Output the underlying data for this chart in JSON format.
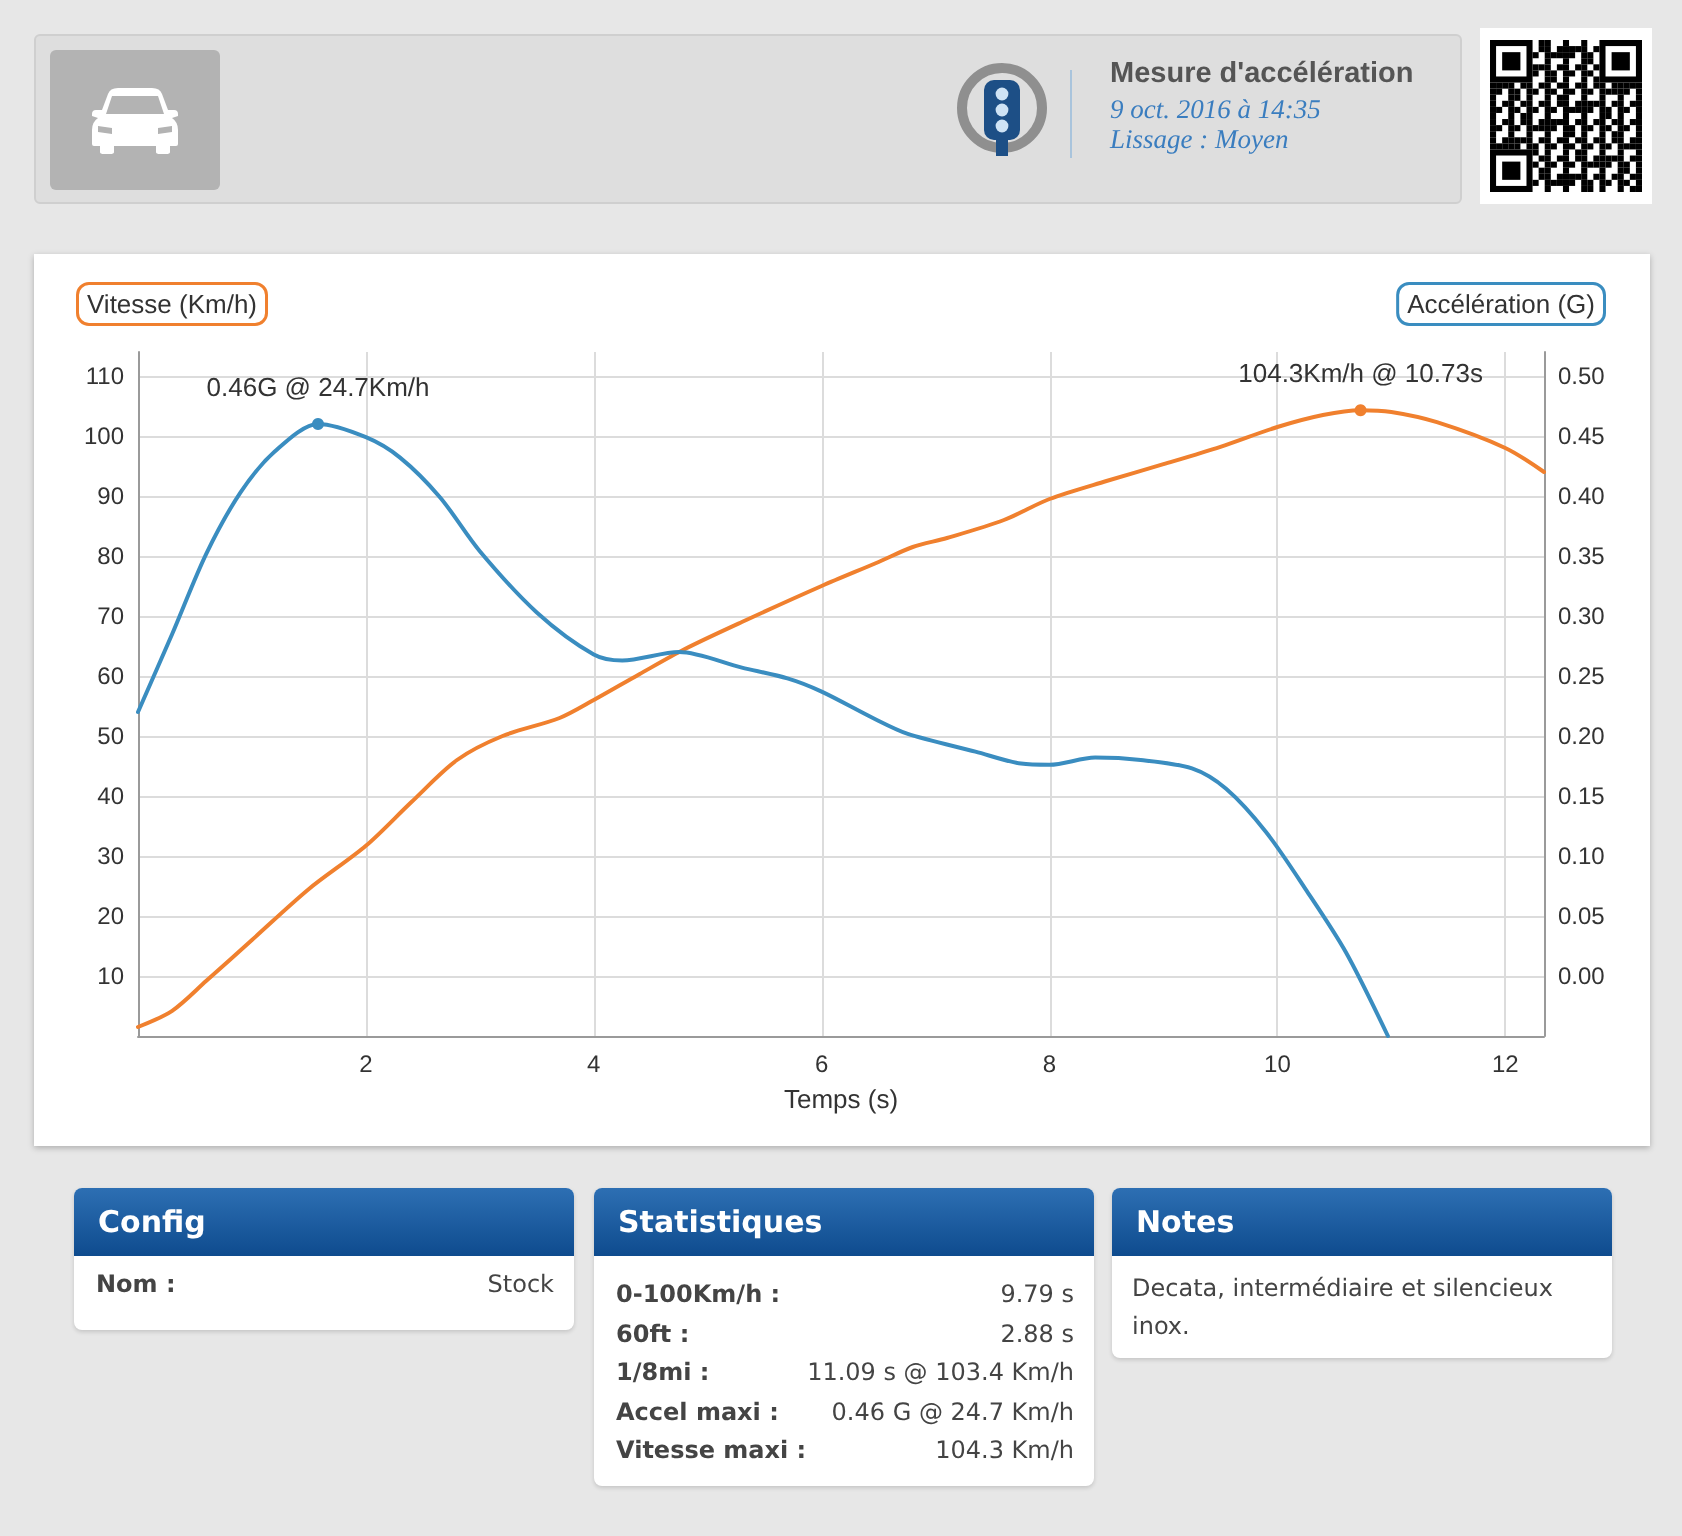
{
  "chart_data": {
    "type": "line",
    "title": "Mesure d'accélération",
    "subtitle": "9 oct. 2016 à 14:35",
    "xlabel": "Temps (s)",
    "ylabel": "Vitesse (Km/h)",
    "y2label": "Accélération (G)",
    "series": [
      {
        "color": "#f0802e",
        "x": [
          0,
          0.3,
          0.6,
          1.0,
          1.5,
          2.0,
          2.4,
          2.8,
          3.2,
          3.7,
          4.0,
          4.4,
          4.8,
          5.3,
          6.0,
          6.5,
          6.8,
          7.1,
          7.6,
          8.0,
          8.5,
          9.0,
          9.5,
          10.0,
          10.4,
          10.73,
          11.0,
          11.4,
          12.0,
          12.34
        ],
        "values": [
          1.5,
          4.2,
          9.2,
          16,
          24.5,
          31.7,
          39,
          46,
          50,
          53,
          56,
          60.3,
          64.5,
          69,
          75,
          79,
          81.5,
          83,
          86,
          89.5,
          92.5,
          95.3,
          98.2,
          101.5,
          103.5,
          104.3,
          104,
          102.3,
          98,
          94
        ],
        "value_labels": [
          null,
          null,
          null,
          null,
          null,
          null,
          null,
          null,
          null,
          null,
          null,
          null,
          null,
          null,
          null,
          null,
          null,
          null,
          null,
          null,
          null,
          null,
          null,
          null,
          null,
          "104.3Km/h @ 10.73s",
          null,
          null,
          null,
          null
        ]
      },
      {
        "color": "#3a8dc0",
        "axis": "y2",
        "x": [
          0,
          0.3,
          0.6,
          0.9,
          1.2,
          1.58,
          2.0,
          2.3,
          2.65,
          3.0,
          3.5,
          4.0,
          4.25,
          4.75,
          5.3,
          5.7,
          6.0,
          6.45,
          6.75,
          7.35,
          7.75,
          8.0,
          8.4,
          8.8,
          9.25,
          9.55,
          9.9,
          10.25,
          10.6,
          10.97
        ],
        "values": [
          0.22,
          0.285,
          0.352,
          0.403,
          0.437,
          0.46,
          0.449,
          0.432,
          0.399,
          0.354,
          0.303,
          0.268,
          0.263,
          0.27,
          0.257,
          0.248,
          0.237,
          0.215,
          0.202,
          0.187,
          0.177,
          0.176,
          0.182,
          0.18,
          0.173,
          0.156,
          0.12,
          0.072,
          0.02,
          -0.05
        ],
        "value_labels": [
          null,
          null,
          null,
          null,
          null,
          "0.46G @ 24.7Km/h",
          null,
          null,
          null,
          null,
          null,
          null,
          null,
          null,
          null,
          null,
          null,
          null,
          null,
          null,
          null,
          null,
          null,
          null,
          null,
          null,
          null,
          null,
          null,
          null
        ]
      }
    ],
    "xlim": [
      0,
      12.34
    ],
    "xticks": [
      2,
      4,
      6,
      8,
      10,
      12
    ],
    "ylim": [
      0,
      114
    ],
    "yticks": [
      10,
      20,
      30,
      40,
      50,
      60,
      70,
      80,
      90,
      100,
      110
    ],
    "y2lim": [
      -0.05,
      0.52
    ],
    "y2ticks": [
      {
        "value": 0,
        "label": "0.00"
      },
      {
        "value": 0.05,
        "label": "0.05"
      },
      {
        "value": 0.1,
        "label": "0.10"
      },
      {
        "value": 0.15,
        "label": "0.15"
      },
      {
        "value": 0.2,
        "label": "0.20"
      },
      {
        "value": 0.25,
        "label": "0.25"
      },
      {
        "value": 0.3,
        "label": "0.30"
      },
      {
        "value": 0.35,
        "label": "0.35"
      },
      {
        "value": 0.4,
        "label": "0.40"
      },
      {
        "value": 0.45,
        "label": "0.45"
      },
      {
        "value": 0.5,
        "label": "0.50"
      }
    ],
    "grid": true,
    "annotations": [
      "Lissage : Moyen",
      "Config",
      "Nom :",
      "Stock",
      "Statistiques",
      "0-100Km/h :",
      "9.79 s",
      "60ft :",
      "2.88 s",
      "1/8mi :",
      "11.09 s @ 103.4 Km/h",
      "Accel maxi :",
      "0.46 G @ 24.7 Km/h",
      "Vitesse maxi :",
      "104.3 Km/h",
      "Notes",
      "Decata, intermédiaire et silencieux inox."
    ]
  }
}
